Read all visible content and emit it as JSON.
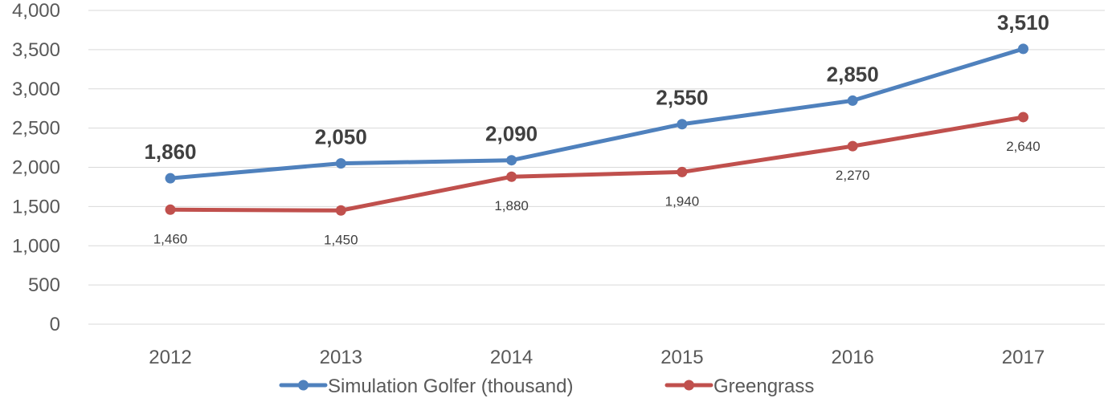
{
  "chart_data": {
    "type": "line",
    "categories": [
      "2012",
      "2013",
      "2014",
      "2015",
      "2016",
      "2017"
    ],
    "ylim": [
      0,
      4000
    ],
    "yticks": [
      "0",
      "500",
      "1,000",
      "1,500",
      "2,000",
      "2,500",
      "3,000",
      "3,500",
      "4,000"
    ],
    "grid": true,
    "legend_position": "bottom",
    "series": [
      {
        "name": "Simulation Golfer (thousand)",
        "color": "#4f81bd",
        "values": [
          1860,
          2050,
          2090,
          2550,
          2850,
          3510
        ],
        "labels": [
          "1,860",
          "2,050",
          "2,090",
          "2,550",
          "2,850",
          "3,510"
        ],
        "label_style": "bold-above"
      },
      {
        "name": "Greengrass",
        "color": "#c0504d",
        "values": [
          1460,
          1450,
          1880,
          1940,
          2270,
          2640
        ],
        "labels": [
          "1,460",
          "1,450",
          "1,880",
          "1,940",
          "2,270",
          "2,640"
        ],
        "label_style": "small-below"
      }
    ]
  }
}
